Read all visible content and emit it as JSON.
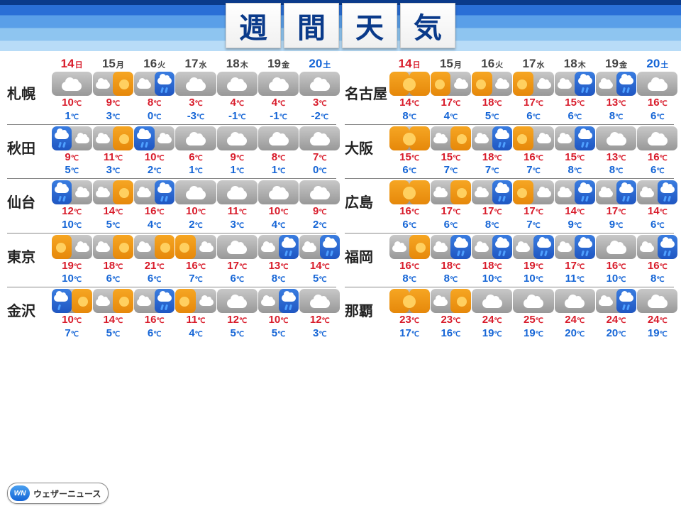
{
  "title_chars": [
    "週",
    "間",
    "天",
    "気"
  ],
  "days": [
    {
      "num": "14",
      "dow": "日",
      "cls": "sun"
    },
    {
      "num": "15",
      "dow": "月",
      "cls": "wd"
    },
    {
      "num": "16",
      "dow": "火",
      "cls": "wd"
    },
    {
      "num": "17",
      "dow": "水",
      "cls": "wd"
    },
    {
      "num": "18",
      "dow": "木",
      "cls": "wd"
    },
    {
      "num": "19",
      "dow": "金",
      "cls": "wd"
    },
    {
      "num": "20",
      "dow": "土",
      "cls": "sat"
    }
  ],
  "style": {
    "header_gradient": [
      "#0a3a8a",
      "#2a6fd6",
      "#5a9fe8",
      "#8ec5f0",
      "#b8dcf7"
    ],
    "hi_color": "#d81b2a",
    "lo_color": "#1565d6",
    "sun_bg": [
      "#f6a623",
      "#e6880a"
    ],
    "rain_bg": [
      "#3a7de0",
      "#1f56c2"
    ],
    "cloud_bg": [
      "#c8c8c8",
      "#989898"
    ],
    "temp_unit": "℃"
  },
  "cols": [
    [
      {
        "city": "札幌",
        "hi": [
          "10",
          "9",
          "8",
          "3",
          "4",
          "4",
          "3"
        ],
        "lo": [
          "1",
          "3",
          "0",
          "-3",
          "-1",
          "-1",
          "-2"
        ],
        "ic": [
          "cloud",
          "cloud-sun",
          "cloud-rain",
          "cloud",
          "cloud",
          "cloud",
          "cloud"
        ]
      },
      {
        "city": "秋田",
        "hi": [
          "9",
          "11",
          "10",
          "6",
          "9",
          "8",
          "7"
        ],
        "lo": [
          "5",
          "3",
          "2",
          "1",
          "1",
          "1",
          "0"
        ],
        "ic": [
          "rain-cloud",
          "cloud-sun",
          "rain-cloud",
          "cloud",
          "cloud",
          "cloud",
          "cloud"
        ]
      },
      {
        "city": "仙台",
        "hi": [
          "12",
          "14",
          "16",
          "10",
          "11",
          "10",
          "9"
        ],
        "lo": [
          "10",
          "5",
          "4",
          "2",
          "3",
          "4",
          "2"
        ],
        "ic": [
          "rain-cloud",
          "cloud-sun",
          "cloud-rain",
          "cloud",
          "cloud",
          "cloud",
          "cloud"
        ]
      },
      {
        "city": "東京",
        "hi": [
          "19",
          "18",
          "21",
          "16",
          "17",
          "13",
          "14"
        ],
        "lo": [
          "10",
          "6",
          "6",
          "7",
          "6",
          "8",
          "5"
        ],
        "ic": [
          "sun-cloud",
          "cloud-sun",
          "cloud-sun",
          "sun-cloud",
          "cloud",
          "cloud-rain",
          "cloud-rain"
        ]
      },
      {
        "city": "金沢",
        "hi": [
          "10",
          "14",
          "16",
          "11",
          "12",
          "10",
          "12"
        ],
        "lo": [
          "7",
          "5",
          "6",
          "4",
          "5",
          "5",
          "3"
        ],
        "ic": [
          "rain-sun",
          "cloud-sun",
          "cloud-rain",
          "sun-cloud",
          "cloud",
          "cloud-rain",
          "cloud"
        ]
      }
    ],
    [
      {
        "city": "名古屋",
        "hi": [
          "14",
          "17",
          "18",
          "17",
          "15",
          "13",
          "16"
        ],
        "lo": [
          "8",
          "4",
          "5",
          "6",
          "6",
          "8",
          "6"
        ],
        "ic": [
          "sunny",
          "sun-cloud",
          "sun-cloud",
          "sun-cloud",
          "cloud-rain",
          "cloud-rain",
          "cloud"
        ]
      },
      {
        "city": "大阪",
        "hi": [
          "15",
          "15",
          "18",
          "16",
          "15",
          "13",
          "16"
        ],
        "lo": [
          "6",
          "7",
          "7",
          "7",
          "8",
          "8",
          "6"
        ],
        "ic": [
          "sunny",
          "cloud-sun",
          "cloud-rain",
          "sun-cloud",
          "cloud-rain",
          "cloud",
          "cloud"
        ]
      },
      {
        "city": "広島",
        "hi": [
          "16",
          "17",
          "17",
          "17",
          "14",
          "17",
          "14"
        ],
        "lo": [
          "6",
          "6",
          "8",
          "7",
          "9",
          "9",
          "6"
        ],
        "ic": [
          "sunny",
          "cloud-sun",
          "cloud-rain",
          "sun-cloud",
          "cloud-rain",
          "cloud-rain",
          "cloud-rain"
        ]
      },
      {
        "city": "福岡",
        "hi": [
          "16",
          "18",
          "18",
          "19",
          "17",
          "16",
          "16"
        ],
        "lo": [
          "8",
          "8",
          "10",
          "10",
          "11",
          "10",
          "8"
        ],
        "ic": [
          "cloud-sun",
          "cloud-rain",
          "cloud-rain",
          "cloud-rain",
          "cloud-rain",
          "cloud",
          "cloud-rain"
        ]
      },
      {
        "city": "那覇",
        "hi": [
          "23",
          "23",
          "24",
          "25",
          "24",
          "24",
          "24"
        ],
        "lo": [
          "17",
          "16",
          "19",
          "19",
          "20",
          "20",
          "19"
        ],
        "ic": [
          "sunny",
          "cloud-sun",
          "cloud",
          "cloud",
          "cloud",
          "cloud-rain",
          "cloud"
        ]
      }
    ]
  ],
  "logo": {
    "badge": "WN",
    "text": "ウェザーニュース"
  }
}
